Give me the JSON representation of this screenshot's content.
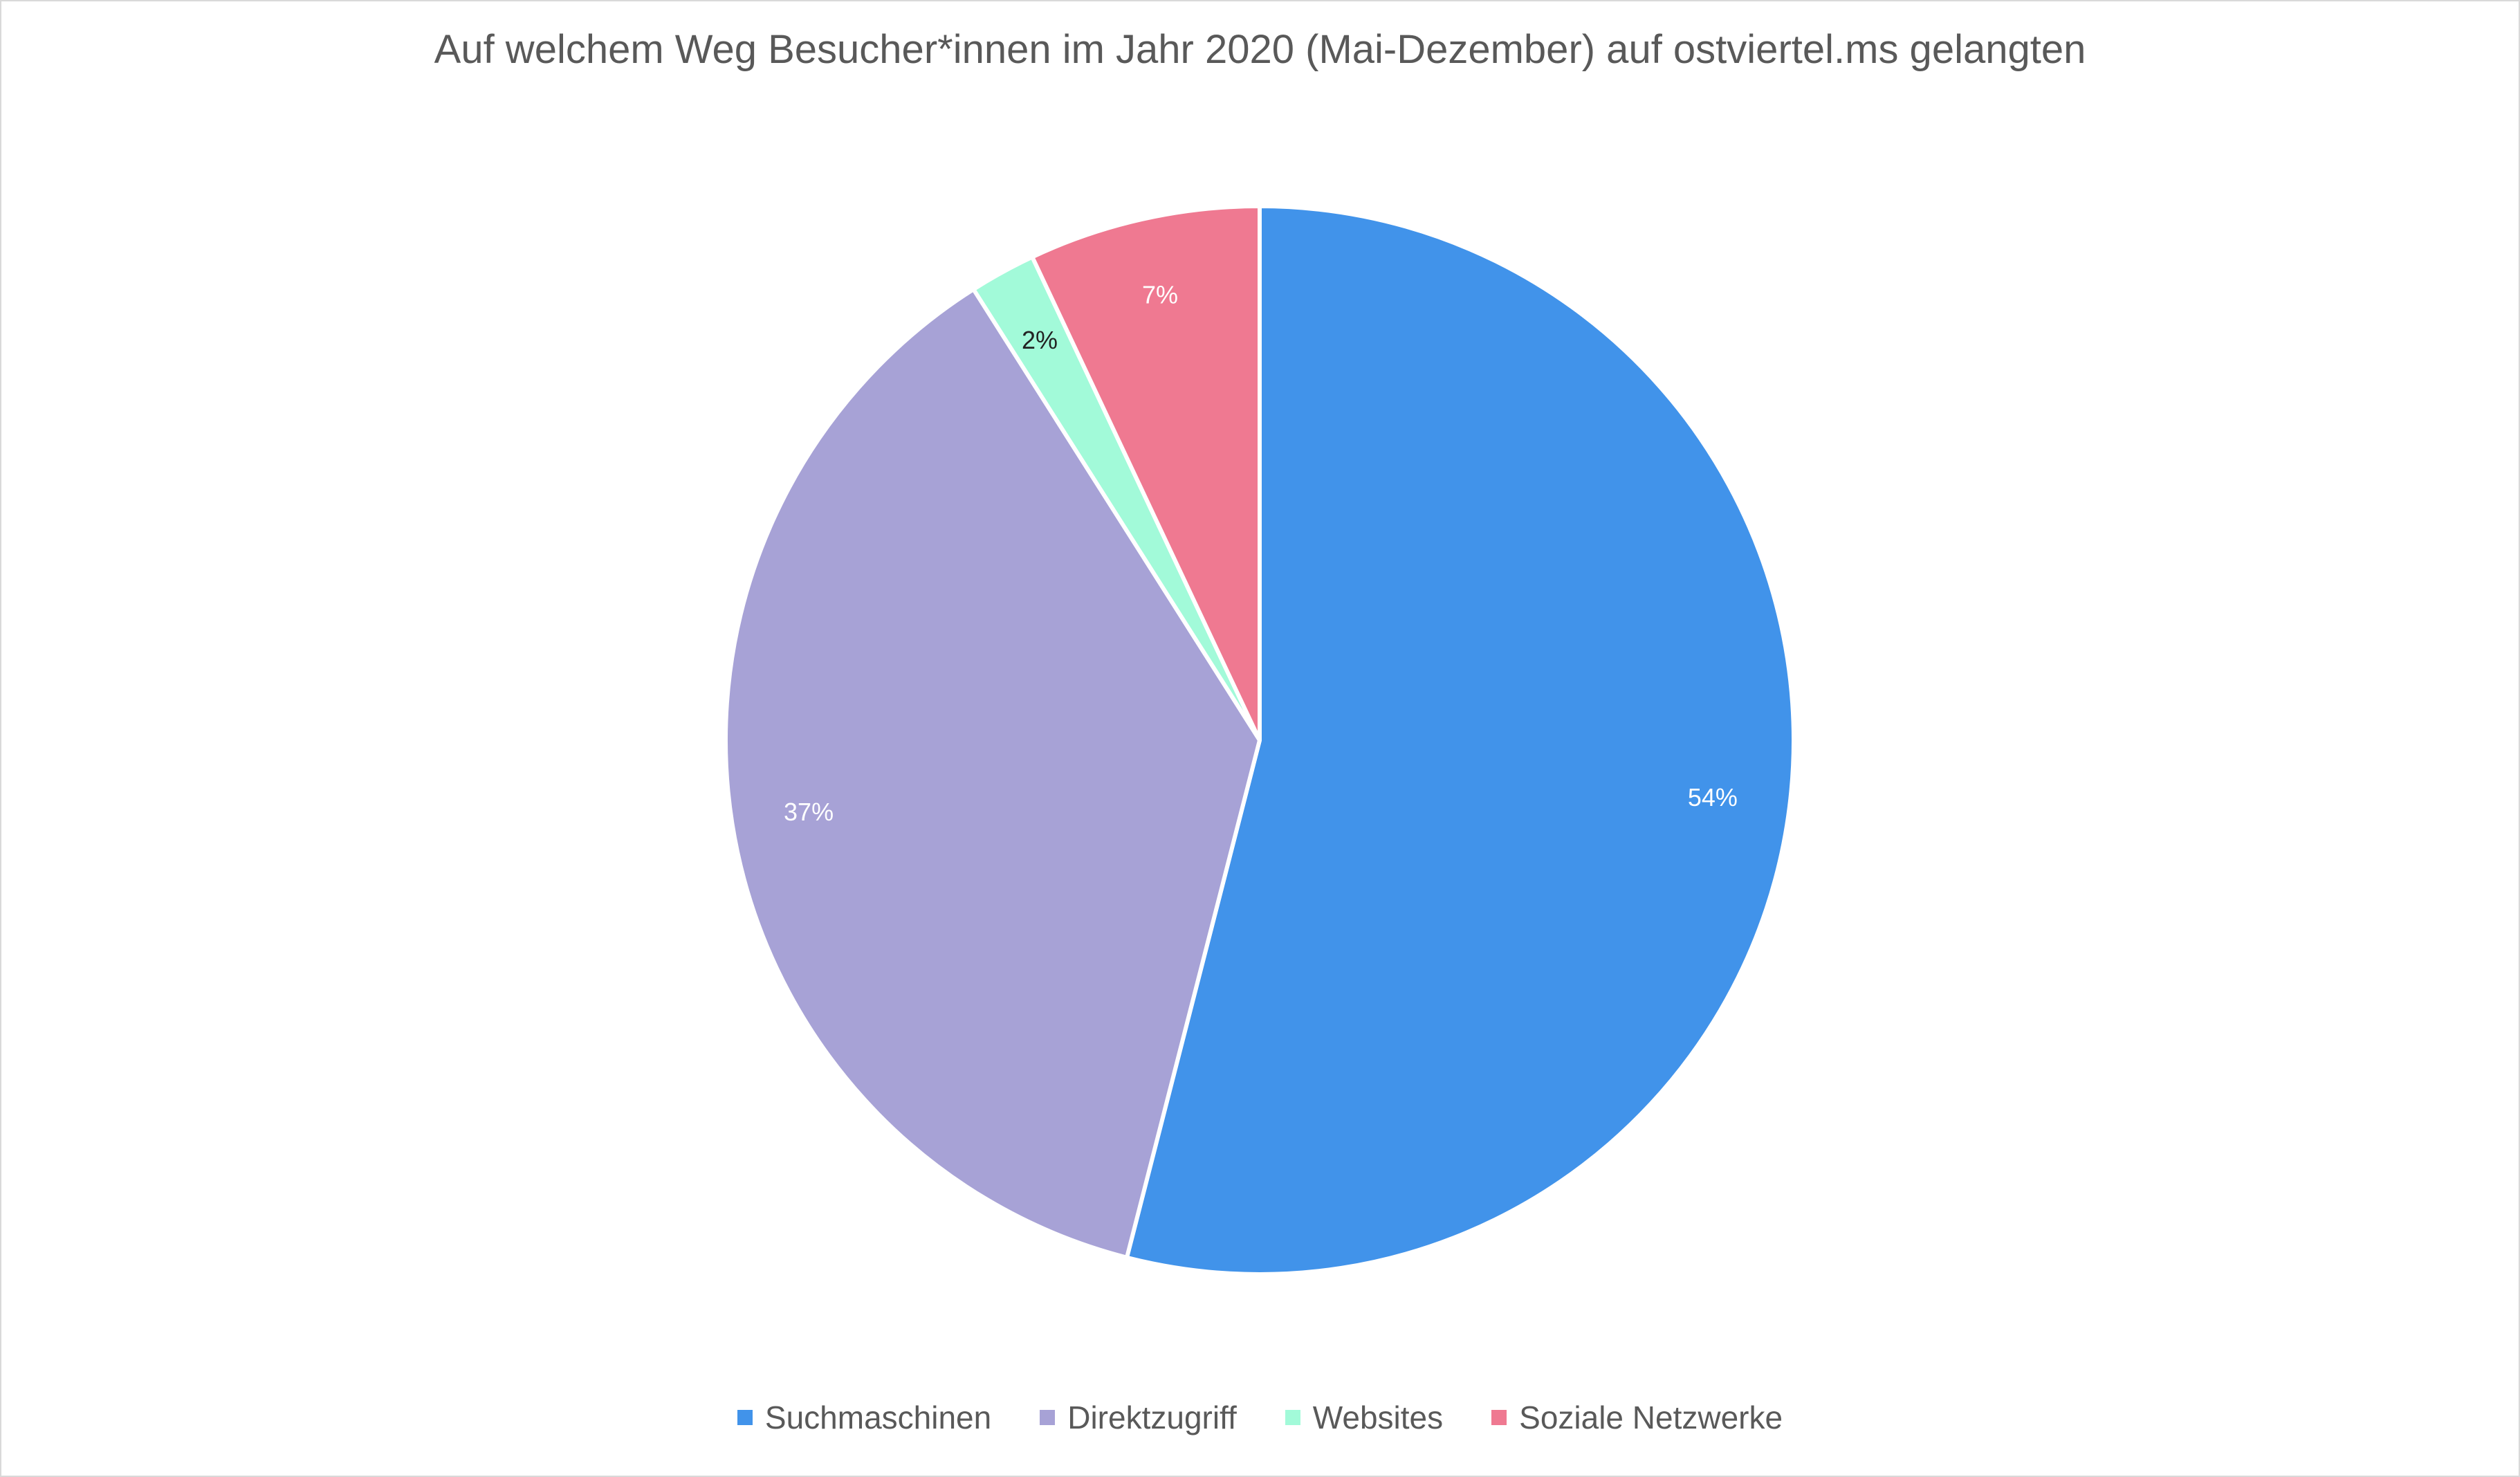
{
  "chart_data": {
    "type": "pie",
    "title": "Auf welchem Weg Besucher*innen im Jahr 2020 (Mai-Dezember) auf ostviertel.ms gelangten",
    "categories": [
      "Suchmaschinen",
      "Direktzugriff",
      "Websites",
      "Soziale Netzwerke"
    ],
    "values": [
      54,
      37,
      2,
      7
    ],
    "data_labels": [
      "54%",
      "37%",
      "2%",
      "7%"
    ],
    "colors": [
      "#4193ea",
      "#a7a2d6",
      "#a2fad9",
      "#ef7991"
    ],
    "label_colors": [
      "#ffffff",
      "#ffffff",
      "#222222",
      "#ffffff"
    ],
    "start": "12 o'clock",
    "direction": "clockwise",
    "legend_position": "bottom"
  }
}
